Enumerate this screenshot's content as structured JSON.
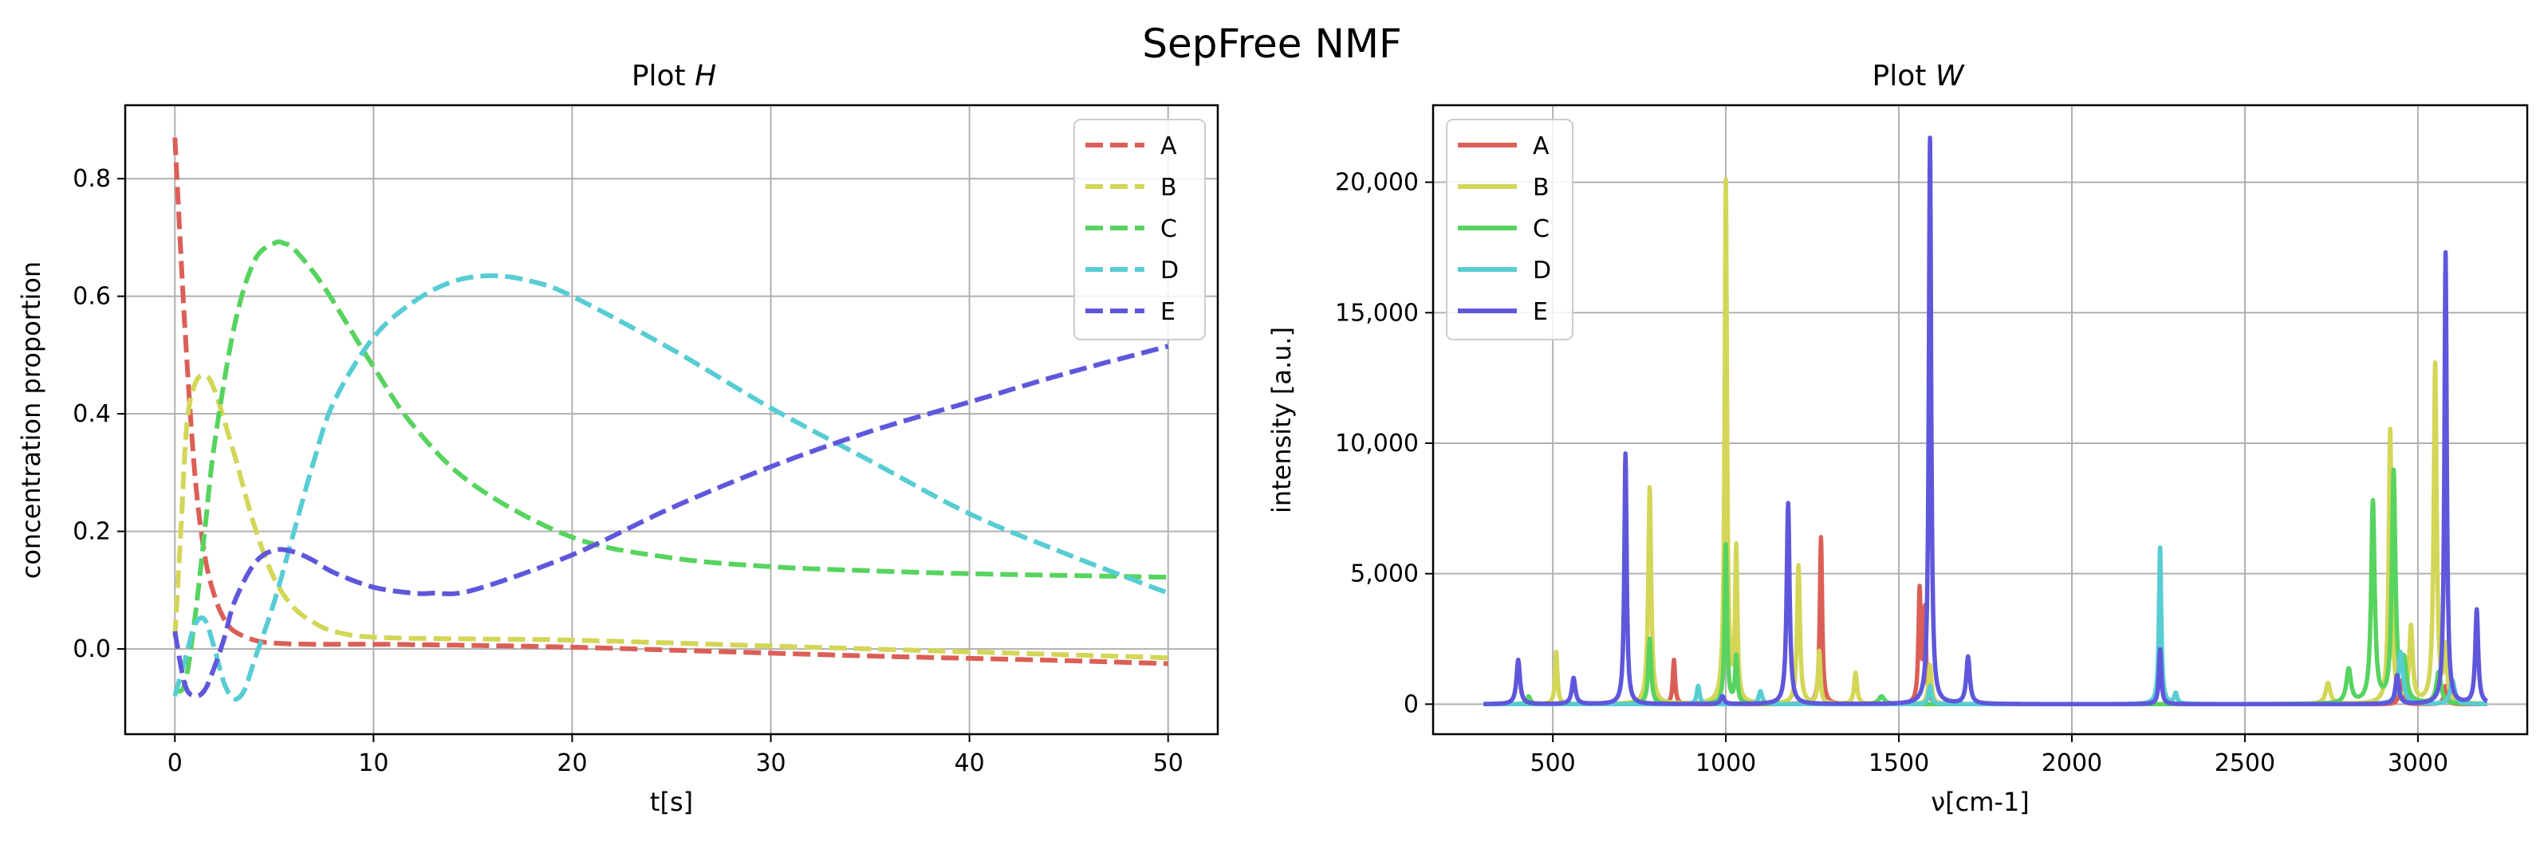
{
  "figure": {
    "title": "SepFree NMF"
  },
  "colors": {
    "A": "#db5f57",
    "B": "#d3d657",
    "C": "#57d35f",
    "D": "#57cdd3",
    "E": "#5f57db",
    "grid": "#b0b0b0",
    "axis": "#000000"
  },
  "chart_data": [
    {
      "type": "line",
      "title_prefix": "Plot ",
      "title_var": "H",
      "xlabel": "t[s]",
      "ylabel": "concentration proportion",
      "xlim": [
        -2.5,
        52.5
      ],
      "ylim": [
        -0.145,
        0.925
      ],
      "xticks": [
        0,
        10,
        20,
        30,
        40,
        50
      ],
      "xtick_labels": [
        "0",
        "10",
        "20",
        "30",
        "40",
        "50"
      ],
      "yticks": [
        0.0,
        0.2,
        0.4,
        0.6,
        0.8
      ],
      "ytick_labels": [
        "0.0",
        "0.2",
        "0.4",
        "0.6",
        "0.8"
      ],
      "grid": true,
      "line_style": "dashed",
      "legend_position": "top-right",
      "series": [
        {
          "name": "A",
          "x": [
            0,
            0.5,
            1,
            1.5,
            2,
            2.5,
            3,
            4,
            5,
            7,
            10,
            15,
            20,
            25,
            30,
            35,
            40,
            45,
            50
          ],
          "y": [
            0.87,
            0.55,
            0.3,
            0.16,
            0.09,
            0.05,
            0.03,
            0.015,
            0.01,
            0.008,
            0.008,
            0.006,
            0.003,
            -0.002,
            -0.007,
            -0.012,
            -0.016,
            -0.02,
            -0.025
          ]
        },
        {
          "name": "B",
          "x": [
            0,
            0.3,
            0.6,
            1,
            1.5,
            2,
            3,
            4,
            5,
            6,
            7,
            8,
            10,
            15,
            20,
            30,
            40,
            50
          ],
          "y": [
            0.02,
            0.2,
            0.38,
            0.45,
            0.465,
            0.44,
            0.33,
            0.21,
            0.12,
            0.07,
            0.045,
            0.03,
            0.02,
            0.017,
            0.015,
            0.005,
            -0.005,
            -0.015
          ]
        },
        {
          "name": "C",
          "x": [
            0,
            0.5,
            1,
            1.5,
            2,
            3,
            4,
            5,
            5.5,
            6,
            7,
            8,
            10,
            12,
            15,
            20,
            25,
            30,
            35,
            40,
            45,
            50
          ],
          "y": [
            -0.07,
            -0.06,
            0.05,
            0.2,
            0.35,
            0.55,
            0.66,
            0.69,
            0.69,
            0.68,
            0.64,
            0.59,
            0.48,
            0.38,
            0.28,
            0.19,
            0.155,
            0.14,
            0.133,
            0.128,
            0.125,
            0.122
          ]
        },
        {
          "name": "D",
          "x": [
            0,
            0.5,
            1,
            1.5,
            2,
            2.5,
            3,
            3.5,
            4,
            5,
            6,
            7,
            8,
            10,
            12,
            14,
            16,
            18,
            20,
            25,
            30,
            35,
            40,
            45,
            50
          ],
          "y": [
            -0.08,
            -0.02,
            0.04,
            0.05,
            0.0,
            -0.06,
            -0.085,
            -0.07,
            -0.02,
            0.08,
            0.2,
            0.32,
            0.42,
            0.53,
            0.59,
            0.625,
            0.635,
            0.625,
            0.6,
            0.51,
            0.41,
            0.32,
            0.23,
            0.16,
            0.095
          ]
        },
        {
          "name": "E",
          "x": [
            0,
            0.5,
            1,
            1.5,
            2,
            2.5,
            3,
            4,
            5,
            6,
            7,
            8,
            10,
            12,
            13,
            15,
            20,
            25,
            30,
            35,
            40,
            45,
            50
          ],
          "y": [
            0.03,
            -0.06,
            -0.08,
            -0.07,
            -0.03,
            0.02,
            0.08,
            0.145,
            0.168,
            0.165,
            0.15,
            0.13,
            0.105,
            0.095,
            0.095,
            0.1,
            0.16,
            0.24,
            0.31,
            0.37,
            0.42,
            0.47,
            0.515
          ]
        }
      ]
    },
    {
      "type": "line",
      "title_prefix": "Plot ",
      "title_var": "W",
      "xlabel": "ν[cm-1]",
      "ylabel": "intensity [a.u.]",
      "xlim": [
        154,
        3316
      ],
      "ylim": [
        -1150,
        22950
      ],
      "xticks": [
        500,
        1000,
        1500,
        2000,
        2500,
        3000
      ],
      "xtick_labels": [
        "500",
        "1000",
        "1500",
        "2000",
        "2500",
        "3000"
      ],
      "yticks": [
        0,
        5000,
        10000,
        15000,
        20000
      ],
      "ytick_labels": [
        "0",
        "5,000",
        "10,000",
        "15,000",
        "20,000"
      ],
      "grid": true,
      "line_style": "solid",
      "legend_position": "top-left",
      "x_range": [
        300,
        3200
      ],
      "series": [
        {
          "name": "A",
          "peaks": [
            [
              850,
              1700,
              4
            ],
            [
              1275,
              6400,
              4
            ],
            [
              1560,
              4300,
              4
            ],
            [
              1575,
              3500,
              4
            ],
            [
              2950,
              900,
              5
            ],
            [
              3080,
              700,
              5
            ]
          ]
        },
        {
          "name": "B",
          "peaks": [
            [
              510,
              2000,
              4
            ],
            [
              780,
              8300,
              5
            ],
            [
              1000,
              20000,
              4
            ],
            [
              1030,
              5800,
              4
            ],
            [
              1210,
              5300,
              5
            ],
            [
              1270,
              2000,
              4
            ],
            [
              1375,
              1200,
              5
            ],
            [
              1590,
              1500,
              5
            ],
            [
              2740,
              800,
              8
            ],
            [
              2920,
              10500,
              5
            ],
            [
              2980,
              2900,
              6
            ],
            [
              3050,
              13000,
              5
            ],
            [
              3080,
              2000,
              5
            ]
          ]
        },
        {
          "name": "C",
          "peaks": [
            [
              430,
              300,
              6
            ],
            [
              780,
              2500,
              5
            ],
            [
              1000,
              6100,
              4
            ],
            [
              1030,
              1800,
              4
            ],
            [
              1450,
              300,
              10
            ],
            [
              2800,
              1300,
              8
            ],
            [
              2870,
              7700,
              6
            ],
            [
              2930,
              8800,
              6
            ],
            [
              2960,
              1500,
              8
            ],
            [
              3060,
              1200,
              8
            ]
          ]
        },
        {
          "name": "D",
          "peaks": [
            [
              920,
              700,
              5
            ],
            [
              1100,
              500,
              6
            ],
            [
              1590,
              700,
              5
            ],
            [
              2255,
              6000,
              4
            ],
            [
              2300,
              400,
              5
            ],
            [
              2950,
              2000,
              8
            ],
            [
              3100,
              900,
              8
            ]
          ]
        },
        {
          "name": "E",
          "peaks": [
            [
              400,
              1700,
              6
            ],
            [
              560,
              1000,
              6
            ],
            [
              710,
              9600,
              4
            ],
            [
              990,
              300,
              6
            ],
            [
              1180,
              7700,
              5
            ],
            [
              1590,
              21700,
              4
            ],
            [
              1700,
              1800,
              6
            ],
            [
              2255,
              2100,
              4
            ],
            [
              2940,
              1100,
              6
            ],
            [
              3080,
              17300,
              4
            ],
            [
              3170,
              3600,
              5
            ]
          ]
        }
      ]
    }
  ]
}
